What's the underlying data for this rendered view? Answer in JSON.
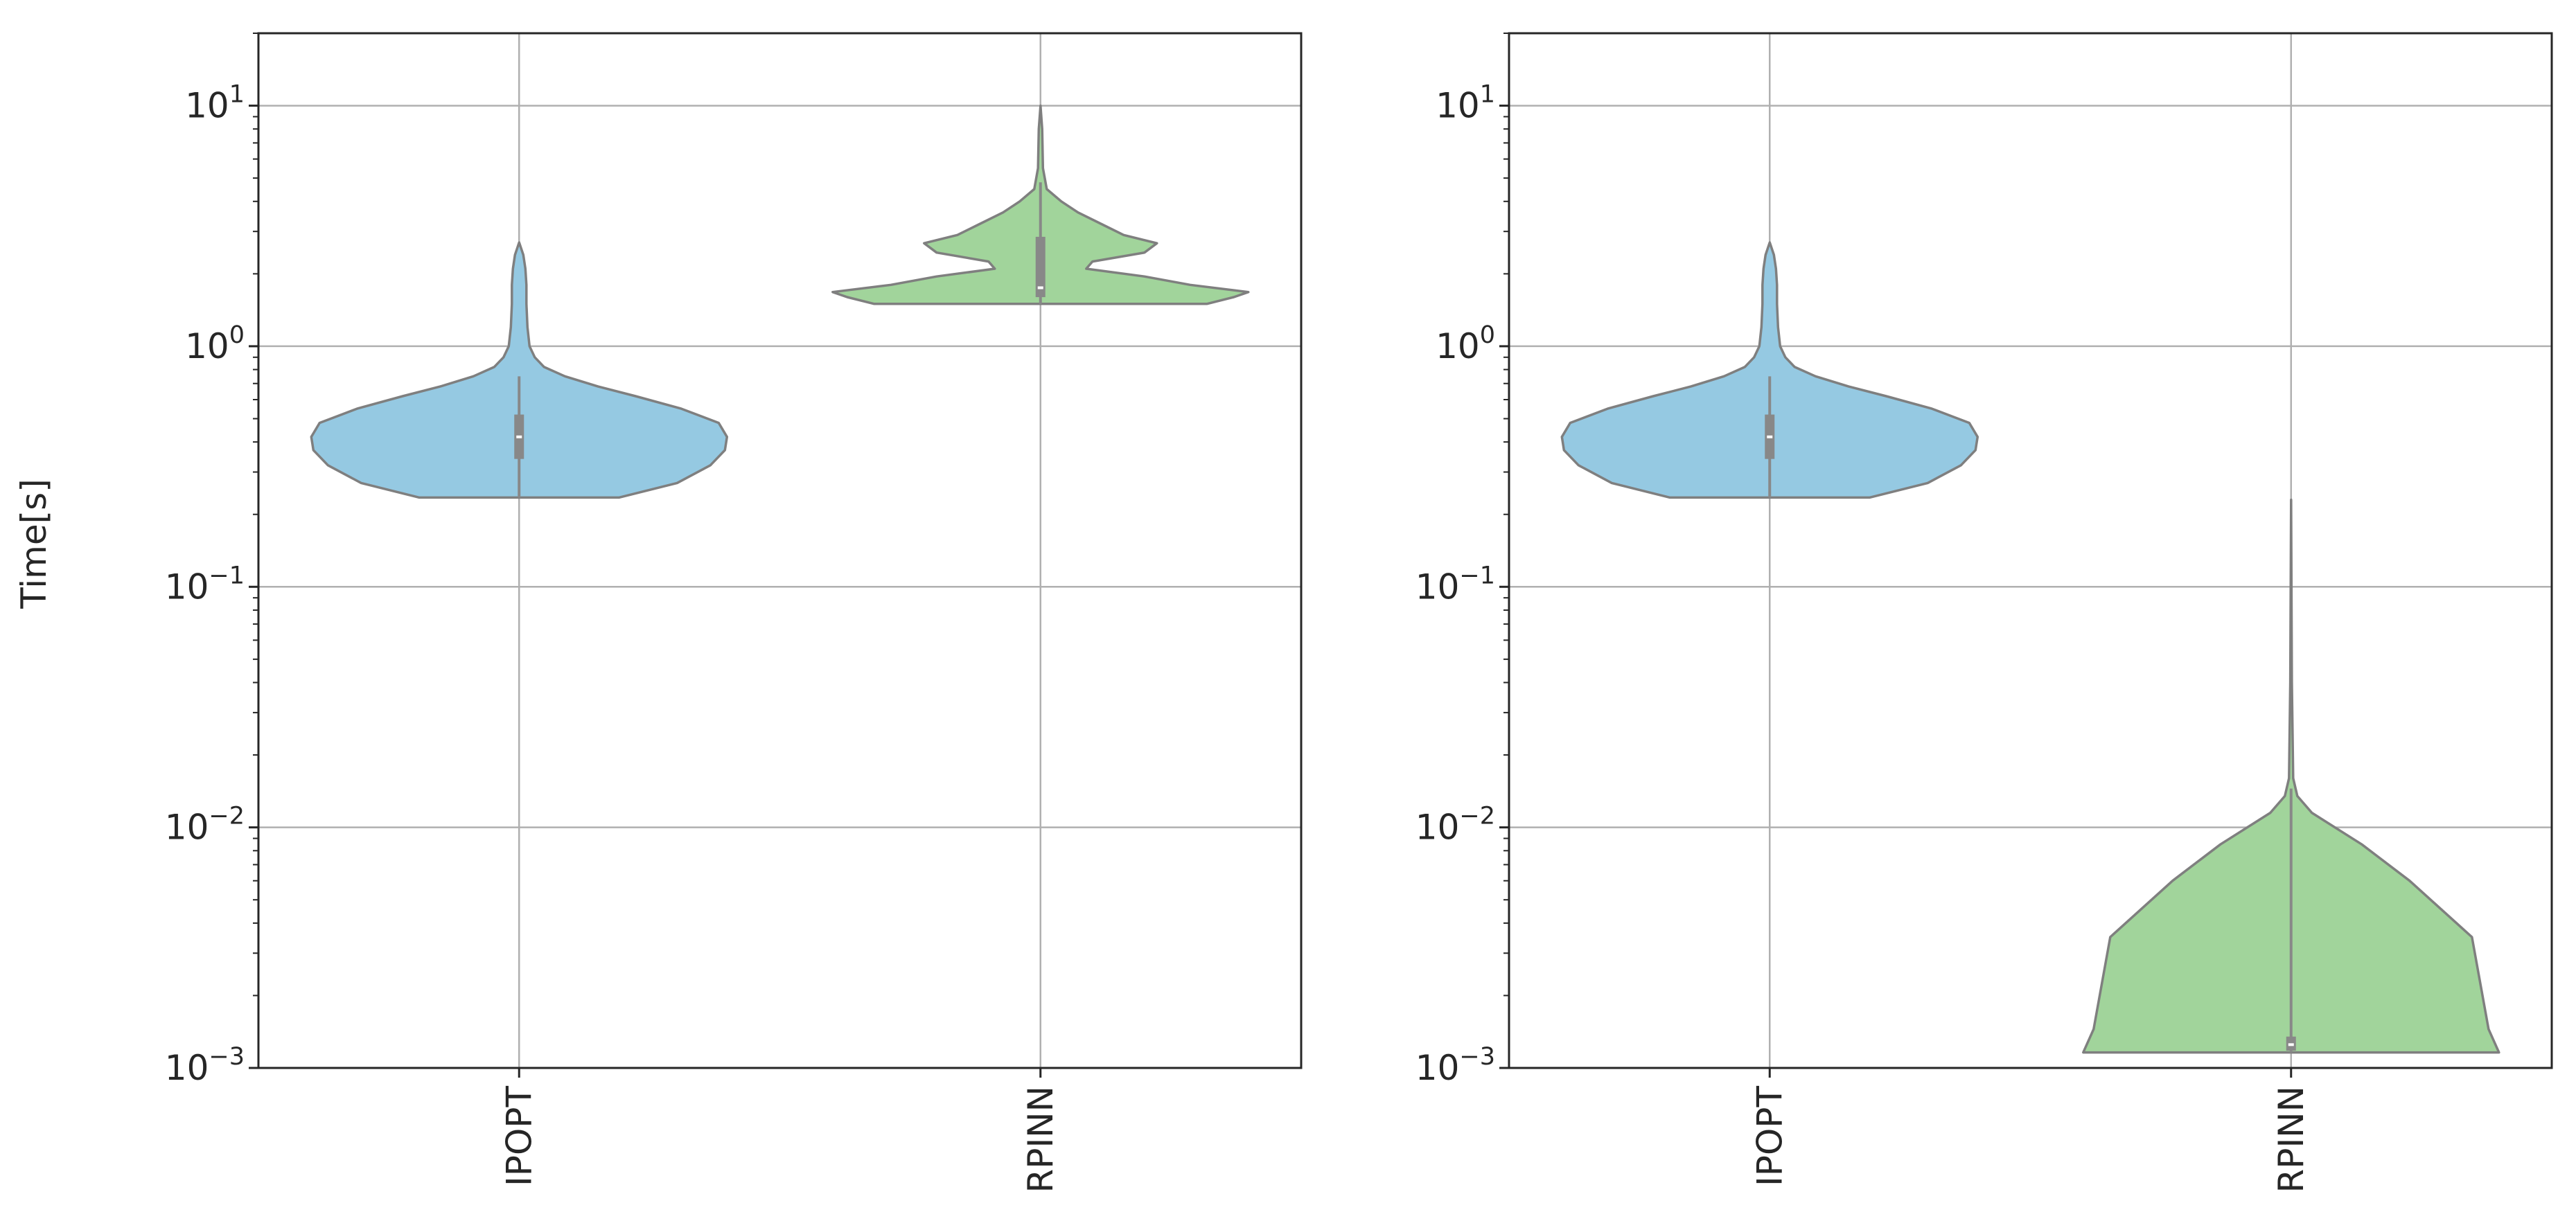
{
  "chart_data": {
    "type": "violin",
    "ylabel": "Time[s]",
    "yscale": "log",
    "ylim": [
      0.001,
      20
    ],
    "yticks": [
      {
        "value": 0.001,
        "base": "10",
        "exp": "−3"
      },
      {
        "value": 0.01,
        "base": "10",
        "exp": "−2"
      },
      {
        "value": 0.1,
        "base": "10",
        "exp": "−1"
      },
      {
        "value": 1,
        "base": "10",
        "exp": "0"
      },
      {
        "value": 10,
        "base": "10",
        "exp": "1"
      }
    ],
    "grid": true,
    "panels": [
      {
        "categories": [
          "IPOPT",
          "RPINN"
        ],
        "series": [
          {
            "category": "IPOPT",
            "color": "#95c9e2",
            "min": 0.235,
            "max": 2.7,
            "q1": 0.34,
            "median": 0.42,
            "q3": 0.52,
            "whisker_low": 0.235,
            "whisker_high": 0.75,
            "profile": [
              [
                0.235,
                0.48
              ],
              [
                0.27,
                0.76
              ],
              [
                0.32,
                0.92
              ],
              [
                0.37,
                0.99
              ],
              [
                0.42,
                1.0
              ],
              [
                0.48,
                0.96
              ],
              [
                0.55,
                0.78
              ],
              [
                0.62,
                0.56
              ],
              [
                0.68,
                0.38
              ],
              [
                0.75,
                0.22
              ],
              [
                0.82,
                0.12
              ],
              [
                0.9,
                0.075
              ],
              [
                1.0,
                0.05
              ],
              [
                1.2,
                0.04
              ],
              [
                1.5,
                0.035
              ],
              [
                1.8,
                0.035
              ],
              [
                2.1,
                0.03
              ],
              [
                2.4,
                0.02
              ],
              [
                2.7,
                0.0
              ]
            ]
          },
          {
            "category": "RPINN",
            "color": "#a1d49b",
            "min": 1.5,
            "max": 10,
            "q1": 1.6,
            "median": 1.75,
            "q3": 2.85,
            "whisker_low": 1.5,
            "whisker_high": 4.8,
            "profile": [
              [
                1.5,
                0.8
              ],
              [
                1.6,
                0.93
              ],
              [
                1.68,
                1.0
              ],
              [
                1.8,
                0.72
              ],
              [
                1.95,
                0.5
              ],
              [
                2.1,
                0.22
              ],
              [
                2.25,
                0.25
              ],
              [
                2.45,
                0.5
              ],
              [
                2.68,
                0.56
              ],
              [
                2.9,
                0.4
              ],
              [
                3.2,
                0.3
              ],
              [
                3.6,
                0.18
              ],
              [
                4.0,
                0.1
              ],
              [
                4.5,
                0.03
              ],
              [
                5.5,
                0.012
              ],
              [
                8.0,
                0.008
              ],
              [
                10.0,
                0.0
              ]
            ]
          }
        ]
      },
      {
        "categories": [
          "IPOPT",
          "RPINN"
        ],
        "series": [
          {
            "category": "IPOPT",
            "color": "#95c9e2",
            "min": 0.235,
            "max": 2.7,
            "q1": 0.34,
            "median": 0.42,
            "q3": 0.52,
            "whisker_low": 0.235,
            "whisker_high": 0.75,
            "profile": [
              [
                0.235,
                0.48
              ],
              [
                0.27,
                0.76
              ],
              [
                0.32,
                0.92
              ],
              [
                0.37,
                0.99
              ],
              [
                0.42,
                1.0
              ],
              [
                0.48,
                0.96
              ],
              [
                0.55,
                0.78
              ],
              [
                0.62,
                0.56
              ],
              [
                0.68,
                0.38
              ],
              [
                0.75,
                0.22
              ],
              [
                0.82,
                0.12
              ],
              [
                0.9,
                0.075
              ],
              [
                1.0,
                0.05
              ],
              [
                1.2,
                0.04
              ],
              [
                1.5,
                0.035
              ],
              [
                1.8,
                0.035
              ],
              [
                2.1,
                0.03
              ],
              [
                2.4,
                0.02
              ],
              [
                2.7,
                0.0
              ]
            ]
          },
          {
            "category": "RPINN",
            "color": "#a1d49b",
            "min": 0.00116,
            "max": 0.23,
            "q1": 0.00118,
            "median": 0.00125,
            "q3": 0.00135,
            "whisker_low": 0.00116,
            "whisker_high": 0.0145,
            "profile": [
              [
                0.00116,
                1.0
              ],
              [
                0.00145,
                0.95
              ],
              [
                0.0035,
                0.87
              ],
              [
                0.006,
                0.57
              ],
              [
                0.0085,
                0.34
              ],
              [
                0.0115,
                0.1
              ],
              [
                0.0135,
                0.03
              ],
              [
                0.016,
                0.01
              ],
              [
                0.04,
                0.004
              ],
              [
                0.23,
                0.0
              ]
            ]
          }
        ]
      }
    ]
  }
}
